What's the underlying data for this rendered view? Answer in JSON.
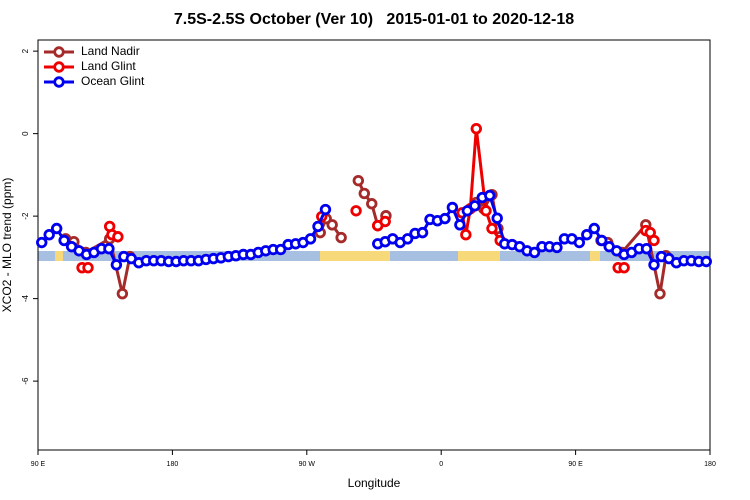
{
  "chart_data": {
    "type": "line",
    "title": "7.5S-2.5S October (Ver 10)   2015-01-01 to 2020-12-18",
    "x_label": "Longitude",
    "y_label": "XCO2 - MLO trend (ppm)",
    "xlim": [
      90,
      540
    ],
    "xticks": [
      {
        "value": 90,
        "label": "90 E"
      },
      180,
      {
        "value": 270,
        "label": "90 W"
      },
      {
        "value": 360,
        "label": "0"
      },
      {
        "value": 450,
        "label": "90 E"
      },
      {
        "value": 540,
        "label": "180"
      }
    ],
    "ylim": [
      -7.67,
      2.27
    ],
    "yticks": [
      -6,
      -4,
      -2,
      0,
      2
    ],
    "legend": "top-left",
    "series": [
      {
        "name": "Land Nadir",
        "color": "#a52a2a",
        "x": [
          108.5,
          114,
          122,
          138,
          146.5,
          151.5,
          null,
          279,
          283,
          287,
          293,
          null,
          304.5,
          308.5,
          313.5,
          317.5,
          323,
          null,
          383.5,
          388.5,
          394,
          398,
          null,
          467,
          471.5,
          481,
          497,
          506.5,
          510.5
        ],
        "values": [
          -2.55,
          -2.62,
          -2.88,
          -2.55,
          -3.88,
          -2.98,
          null,
          -2.4,
          -2.06,
          -2.21,
          -2.52,
          null,
          -1.14,
          -1.45,
          -1.7,
          -2.23,
          -1.99,
          null,
          -1.67,
          -1.82,
          -1.48,
          -2.3,
          null,
          -2.59,
          -2.64,
          -2.88,
          -2.21,
          -3.88,
          -2.96
        ]
      },
      {
        "name": "Land Glint",
        "color": "#ee0000",
        "x": [
          119.5,
          123.5,
          null,
          138,
          139.5,
          143.5,
          null,
          280,
          null,
          303,
          null,
          317.5,
          322.5,
          null,
          374,
          376.5,
          379.5,
          383.5,
          390,
          394,
          399.5,
          null,
          478.5,
          482.5,
          null,
          497,
          500,
          502.5
        ],
        "values": [
          -3.25,
          -3.25,
          null,
          -2.25,
          -2.45,
          -2.5,
          null,
          -2.01,
          null,
          -1.87,
          null,
          -2.23,
          -2.13,
          null,
          -1.92,
          -2.45,
          -1.82,
          0.12,
          -1.87,
          -2.3,
          -2.59,
          null,
          -3.25,
          -3.25,
          null,
          -2.35,
          -2.4,
          -2.59
        ]
      },
      {
        "name": "Ocean Glint",
        "color": "#0000ee",
        "x": [
          92.5,
          97.5,
          102.5,
          107.5,
          112.5,
          117.5,
          122.5,
          127.5,
          132.5,
          137.5,
          142.5,
          147.5,
          152.5,
          157.5,
          162.5,
          167.5,
          172.5,
          177.5,
          182.5,
          187.5,
          192.5,
          197.5,
          202.5,
          207.5,
          212.5,
          217.5,
          222.5,
          227.5,
          232.5,
          237.5,
          242.5,
          247.5,
          252.5,
          257.5,
          262.5,
          267.5,
          272.5,
          277.5,
          282.5,
          287.5,
          292.5,
          297.5,
          302.5,
          307.5,
          312.5,
          317.5,
          322.5,
          327.5,
          332.5,
          337.5,
          342.5,
          347.5,
          352.5,
          357.5,
          362.5,
          367.5,
          372.5,
          377.5,
          382.5,
          387.5,
          392.5,
          397.5,
          402.5,
          407.5,
          412.5,
          417.5,
          422.5,
          427.5,
          432.5,
          437.5,
          442.5,
          447.5,
          452.5,
          457.5,
          462.5,
          467.5,
          472.5,
          477.5,
          482.5,
          487.5,
          492.5,
          497.5,
          502.5,
          507.5,
          512.5,
          517.5,
          522.5,
          527.5,
          532.5,
          537.5
        ],
        "values": [
          -2.64,
          -2.45,
          -2.3,
          -2.59,
          -2.74,
          -2.84,
          -2.93,
          -2.88,
          -2.79,
          -2.79,
          -3.18,
          -2.98,
          -3.03,
          -3.13,
          -3.08,
          -3.08,
          -3.08,
          -3.1,
          -3.1,
          -3.08,
          -3.08,
          -3.08,
          -3.05,
          -3.03,
          -3.01,
          -2.98,
          -2.96,
          -2.93,
          -2.93,
          -2.88,
          -2.84,
          -2.81,
          -2.81,
          -2.69,
          -2.67,
          -2.64,
          -2.55,
          -2.25,
          -1.84,
          null,
          null,
          null,
          null,
          null,
          null,
          -2.67,
          -2.62,
          -2.55,
          -2.64,
          -2.55,
          -2.42,
          -2.4,
          -2.08,
          -2.11,
          -2.06,
          -1.79,
          -2.21,
          -1.87,
          -1.75,
          -1.55,
          -1.5,
          -2.05,
          -2.67,
          -2.69,
          -2.74,
          -2.84,
          -2.88,
          -2.74,
          -2.74,
          -2.76,
          -2.55,
          -2.55,
          -2.64,
          -2.45,
          -2.3,
          -2.59,
          -2.74,
          -2.84,
          -2.93,
          -2.88,
          -2.79,
          -2.79,
          -3.18,
          -2.98,
          -3.03,
          -3.13,
          -3.08,
          -3.08,
          -3.1,
          -3.1
        ]
      }
    ]
  }
}
